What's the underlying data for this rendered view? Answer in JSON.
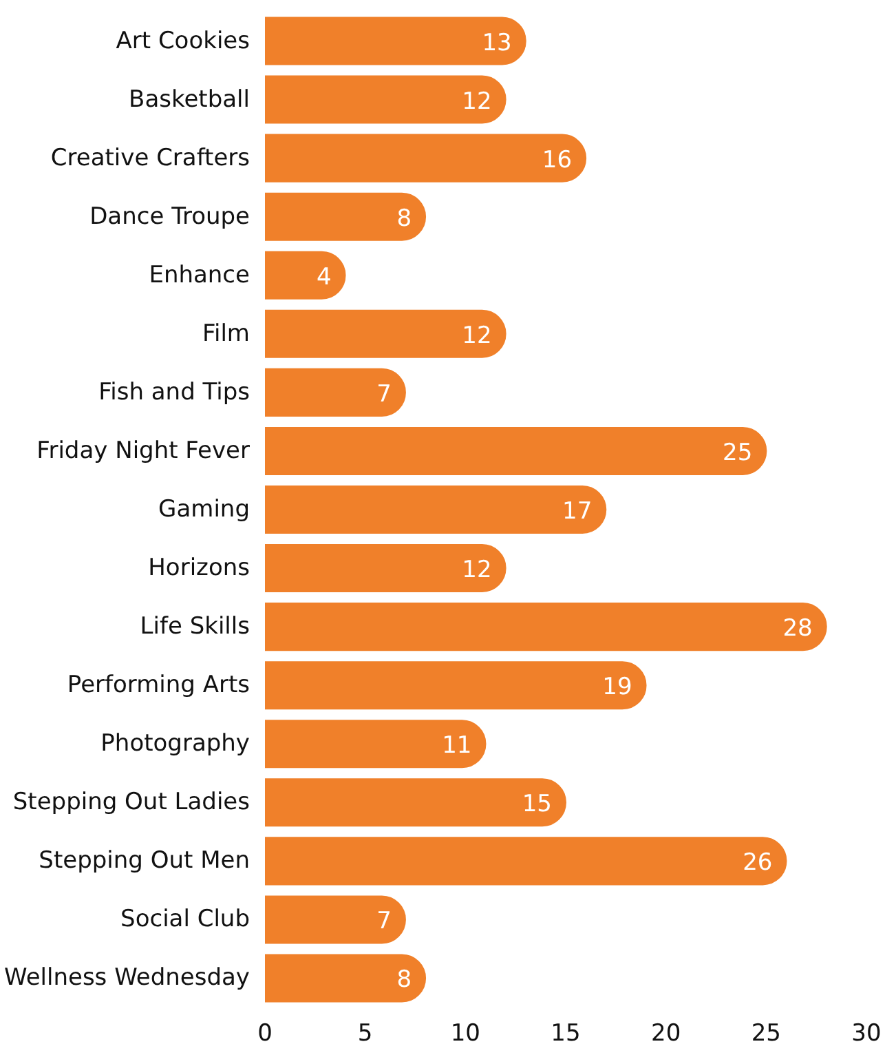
{
  "chart_data": {
    "type": "bar",
    "orientation": "horizontal",
    "categories": [
      "Art Cookies",
      "Basketball",
      "Creative Crafters",
      "Dance Troupe",
      "Enhance",
      "Film",
      "Fish and Tips",
      "Friday Night Fever",
      "Gaming",
      "Horizons",
      "Life Skills",
      "Performing Arts",
      "Photography",
      "Stepping Out Ladies",
      "Stepping Out Men",
      "Social Club",
      "Wellness Wednesday"
    ],
    "values": [
      13,
      12,
      16,
      8,
      4,
      12,
      7,
      25,
      17,
      12,
      28,
      19,
      11,
      15,
      26,
      7,
      8
    ],
    "color": "#f0802a",
    "xlim": [
      0,
      30
    ],
    "xticks": [
      0,
      5,
      10,
      15,
      20,
      25,
      30
    ],
    "data_labels": true
  }
}
